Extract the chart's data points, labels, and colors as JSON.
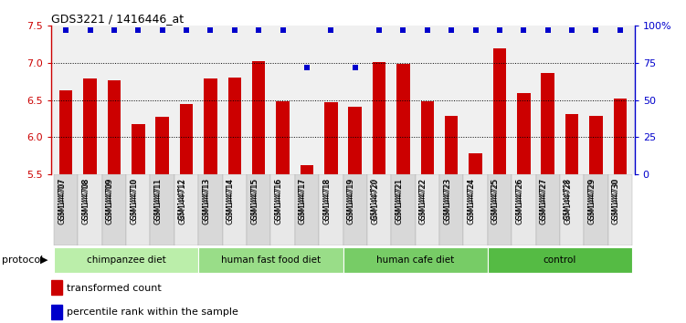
{
  "title": "GDS3221 / 1416446_at",
  "samples": [
    "GSM144707",
    "GSM144708",
    "GSM144709",
    "GSM144710",
    "GSM144711",
    "GSM144712",
    "GSM144713",
    "GSM144714",
    "GSM144715",
    "GSM144716",
    "GSM144717",
    "GSM144718",
    "GSM144719",
    "GSM144720",
    "GSM144721",
    "GSM144722",
    "GSM144723",
    "GSM144724",
    "GSM144725",
    "GSM144726",
    "GSM144727",
    "GSM144728",
    "GSM144729",
    "GSM144730"
  ],
  "bar_values": [
    6.63,
    6.79,
    6.77,
    6.18,
    6.27,
    6.45,
    6.79,
    6.8,
    7.02,
    6.49,
    5.62,
    6.47,
    6.41,
    7.01,
    6.99,
    6.48,
    6.29,
    5.78,
    7.2,
    6.59,
    6.86,
    6.31,
    6.29,
    6.52
  ],
  "percentile_values": [
    97,
    97,
    97,
    97,
    97,
    97,
    97,
    97,
    97,
    97,
    72,
    97,
    72,
    97,
    97,
    97,
    97,
    97,
    97,
    97,
    97,
    97,
    97,
    97
  ],
  "groups": [
    {
      "label": "chimpanzee diet",
      "start": 0,
      "end": 6,
      "color": "#bbeeaa"
    },
    {
      "label": "human fast food diet",
      "start": 6,
      "end": 12,
      "color": "#99dd88"
    },
    {
      "label": "human cafe diet",
      "start": 12,
      "end": 18,
      "color": "#77cc66"
    },
    {
      "label": "control",
      "start": 18,
      "end": 24,
      "color": "#55bb44"
    }
  ],
  "bar_color": "#cc0000",
  "percentile_color": "#0000cc",
  "ylim": [
    5.5,
    7.5
  ],
  "yticks": [
    5.5,
    6.0,
    6.5,
    7.0,
    7.5
  ],
  "right_yticks": [
    0,
    25,
    50,
    75,
    100
  ],
  "grid_values": [
    6.0,
    6.5,
    7.0
  ],
  "plot_bg": "#f0f0f0"
}
